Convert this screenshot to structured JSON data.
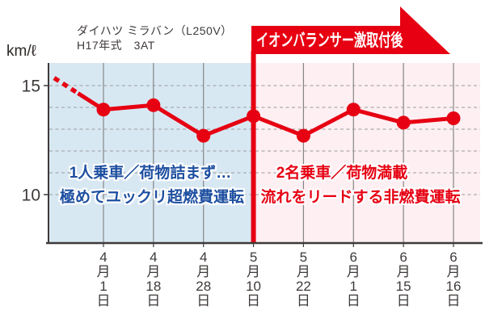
{
  "header": {
    "vehicle_line1": "ダイハツ ミラバン（L250V）",
    "vehicle_line2": "H17年式　3AT",
    "unit_label": "km/ℓ",
    "banner_label": "イオンバランサー激取付後"
  },
  "annotations": {
    "before_line1": "1人乗車／荷物詰まず…",
    "before_line2": "極めてユックリ超燃費運転",
    "after_line1": "2名乗車／荷物満載",
    "after_line2": "流れをリードする非燃費運転"
  },
  "chart_data": {
    "type": "line",
    "title": "ダイハツ ミラバン（L250V） H17年式 3AT",
    "ylabel": "km/ℓ",
    "categories": [
      "4月1日",
      "4月18日",
      "4月28日",
      "5月10日",
      "5月22日",
      "6月1日",
      "6月15日",
      "6月16日"
    ],
    "values": [
      13.9,
      14.1,
      12.7,
      13.6,
      12.7,
      13.9,
      13.3,
      13.5
    ],
    "yticks": [
      15,
      10
    ],
    "ylim": [
      9.5,
      15.8
    ],
    "gridlines_y": [
      15,
      14,
      13,
      12,
      11,
      10
    ],
    "grid": "on",
    "series_color": "#e60012",
    "divider": {
      "category": "5月10日",
      "color": "#e60012",
      "label": "イオンバランサー激取付後"
    },
    "regions": {
      "before_color": "#d8e8f3",
      "after_color": "#fdeff2"
    },
    "lead_in": {
      "style": "dashed",
      "from_value": 15.35
    },
    "annotations": {
      "before": [
        "1人乗車／荷物詰まず…",
        "極めてユックリ超燃費運転"
      ],
      "after": [
        "2名乗車／荷物満載",
        "流れをリードする非燃費運転"
      ]
    }
  }
}
